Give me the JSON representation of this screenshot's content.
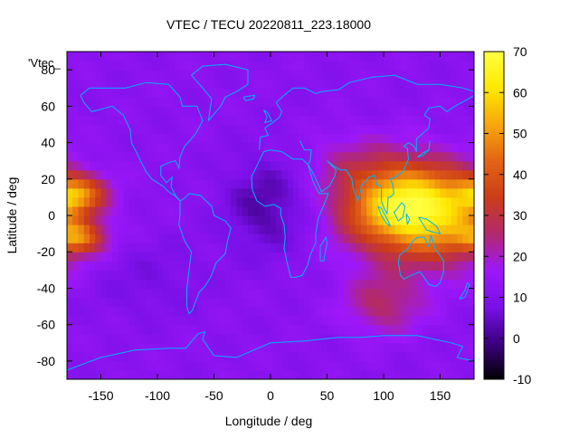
{
  "chart_data": {
    "type": "heatmap",
    "title": "VTEC / TECU 20220811_223.18000",
    "xlabel": "Longitude / deg",
    "ylabel": "Latitude / deg",
    "key_label": "'Vtec_",
    "xlim": [
      -180,
      180
    ],
    "ylim": [
      -90,
      90
    ],
    "x_ticks": [
      -150,
      -100,
      -50,
      0,
      50,
      100,
      150
    ],
    "y_ticks": [
      -80,
      -60,
      -40,
      -20,
      0,
      20,
      40,
      60,
      80
    ],
    "color_range": [
      -10,
      70
    ],
    "colorbar_ticks": [
      -10,
      0,
      10,
      20,
      30,
      40,
      50,
      60,
      70
    ],
    "grid": false,
    "colormap": [
      "#000000",
      "#3c0082",
      "#7a10e8",
      "#9d17f9",
      "#b2296e",
      "#cc3c18",
      "#e36414",
      "#f6a60c",
      "#ffe800",
      "#ffff40"
    ],
    "coastline_color": "#00b4ff",
    "background_vtec": 12,
    "features": [
      {
        "lon": 115,
        "lat": 5,
        "peak": 52,
        "sx": 35,
        "sy": 17
      },
      {
        "lon": 160,
        "lat": -2,
        "peak": 22,
        "sx": 30,
        "sy": 18
      },
      {
        "lon": -172,
        "lat": 12,
        "peak": 30,
        "sx": 18,
        "sy": 7
      },
      {
        "lon": -170,
        "lat": -12,
        "peak": 26,
        "sx": 16,
        "sy": 6
      },
      {
        "lon": 100,
        "lat": -48,
        "peak": 14,
        "sx": 25,
        "sy": 12
      },
      {
        "lon": 65,
        "lat": 30,
        "peak": 6,
        "sx": 25,
        "sy": 12
      },
      {
        "lon": -5,
        "lat": 5,
        "peak": -10,
        "sx": 25,
        "sy": 18
      },
      {
        "lon": -110,
        "lat": -35,
        "peak": -4,
        "sx": 35,
        "sy": 15
      }
    ]
  }
}
